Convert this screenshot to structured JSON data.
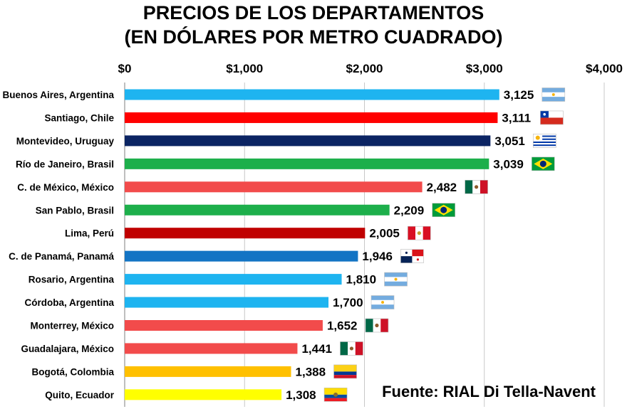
{
  "chart_data": {
    "type": "bar",
    "orientation": "horizontal",
    "title_lines": [
      "PRECIOS DE LOS DEPARTAMENTOS",
      "(EN DÓLARES POR METRO CUADRADO)"
    ],
    "xlabel": "",
    "ylabel": "",
    "xlim": [
      0,
      4000
    ],
    "ticks": [
      {
        "value": 0,
        "label": "$0"
      },
      {
        "value": 1000,
        "label": "$1,000"
      },
      {
        "value": 2000,
        "label": "$2,000"
      },
      {
        "value": 3000,
        "label": "$3,000"
      },
      {
        "value": 4000,
        "label": "$4,000"
      }
    ],
    "grid": "vertical",
    "categories": [
      "Buenos Aires, Argentina",
      "Santiago, Chile",
      "Montevideo, Uruguay",
      "Río de Janeiro, Brasil",
      "C. de México, México",
      "San Pablo, Brasil",
      "Lima, Perú",
      "C. de Panamá, Panamá",
      "Rosario, Argentina",
      "Córdoba, Argentina",
      "Monterrey, México",
      "Guadalajara, México",
      "Bogotá, Colombia",
      "Quito, Ecuador"
    ],
    "values": [
      3125,
      3111,
      3051,
      3039,
      2482,
      2209,
      2005,
      1946,
      1810,
      1700,
      1652,
      1441,
      1388,
      1308
    ],
    "value_labels": [
      "3,125",
      "3,111",
      "3,051",
      "3,039",
      "2,482",
      "2,209",
      "2,005",
      "1,946",
      "1,810",
      "1,700",
      "1,652",
      "1,441",
      "1,388",
      "1,308"
    ],
    "bar_colors": [
      "#1EB4F0",
      "#FF0000",
      "#0B2463",
      "#1DAF4B",
      "#F24B4B",
      "#1DAF4B",
      "#C00000",
      "#1374C4",
      "#1EB4F0",
      "#1EB4F0",
      "#F24B4B",
      "#F24B4B",
      "#FFC000",
      "#FFFF00"
    ],
    "flags": [
      "argentina",
      "chile",
      "uruguay",
      "brazil",
      "mexico",
      "brazil",
      "peru",
      "panama",
      "argentina",
      "argentina",
      "mexico",
      "mexico",
      "colombia",
      "ecuador"
    ],
    "source": "Fuente: RIAL Di Tella-Navent"
  }
}
